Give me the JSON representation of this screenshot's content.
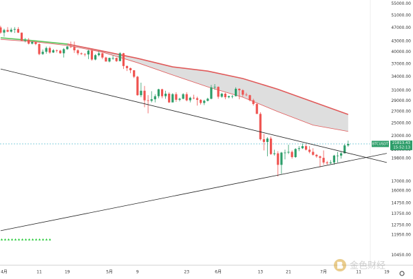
{
  "chart_data": {
    "type": "candlestick",
    "categories": [
      null,
      "4月",
      null,
      null,
      null,
      null,
      null,
      null,
      null,
      null,
      null,
      "11",
      null,
      null,
      null,
      null,
      null,
      null,
      null,
      "19",
      null,
      null,
      null,
      null,
      null,
      null,
      null,
      null,
      null,
      null,
      null,
      "5月",
      null,
      null,
      null,
      null,
      null,
      null,
      null,
      "9",
      null,
      null,
      null,
      null,
      null,
      null,
      null,
      null,
      null,
      null,
      null,
      null,
      null,
      "23",
      null,
      null,
      null,
      null,
      null,
      null,
      null,
      null,
      "6月",
      null,
      null,
      null,
      null,
      null,
      null,
      null,
      null,
      null,
      null,
      null,
      "13",
      null,
      null,
      null,
      null,
      null,
      null,
      null,
      "21",
      null,
      null,
      null,
      null,
      null,
      null,
      null,
      null,
      null,
      "7月",
      null,
      null,
      null,
      null,
      null,
      null,
      null,
      null,
      null,
      "11",
      null,
      null,
      null,
      null,
      null,
      null,
      null,
      "19",
      null,
      null,
      null,
      null,
      null
    ],
    "open": [
      47100,
      45500,
      46300,
      45800,
      46400,
      46600,
      45500,
      43200,
      43400,
      42300,
      42800,
      42200,
      39500,
      40100,
      41100,
      39900,
      40500,
      40400,
      39700,
      40800,
      41500,
      41400,
      40500,
      39700,
      39500,
      39400,
      40400,
      38100,
      39200,
      39700,
      38600,
      37600,
      38500,
      38500,
      37700,
      39700,
      36500,
      36000,
      35500,
      34000,
      30100,
      31000,
      29100,
      29000,
      29300,
      29900,
      31300,
      29900,
      30400,
      28700,
      30300,
      29200,
      29400,
      30300,
      29100,
      29600,
      29500,
      29200,
      28600,
      29000,
      29400,
      31700,
      31800,
      29800,
      30400,
      29700,
      29900,
      29900,
      31400,
      31100,
      30200,
      30100,
      29100,
      28400,
      26600,
      22500,
      22100,
      22600,
      20400,
      20500,
      19000,
      20600,
      20600,
      20700,
      20000,
      21100,
      21200,
      21500,
      21000,
      20700,
      20300,
      20100,
      19900,
      19300,
      19200,
      19300,
      20200,
      20200,
      20500,
      21600,
      null,
      null,
      null,
      null,
      null,
      null,
      null,
      null,
      null,
      null,
      null,
      null,
      null,
      null,
      null,
      null
    ],
    "high": [
      47600,
      46700,
      47200,
      47000,
      47200,
      47200,
      45500,
      43900,
      43900,
      43000,
      42800,
      42400,
      40700,
      41500,
      41500,
      40800,
      40700,
      40600,
      41100,
      41700,
      42900,
      42900,
      40800,
      39900,
      39700,
      40600,
      40800,
      39500,
      40300,
      39900,
      38800,
      38600,
      39100,
      38600,
      40000,
      39800,
      36600,
      36100,
      35500,
      34200,
      32700,
      32000,
      30100,
      30900,
      30300,
      31400,
      31400,
      31000,
      30700,
      30500,
      30700,
      29600,
      30500,
      30700,
      29800,
      30200,
      29800,
      29300,
      29200,
      29600,
      32200,
      32400,
      31900,
      30600,
      30600,
      30000,
      30100,
      31700,
      31500,
      31300,
      30600,
      30200,
      29400,
      28500,
      26900,
      23300,
      22800,
      22900,
      21000,
      20800,
      20700,
      21000,
      21700,
      20900,
      21200,
      21500,
      21900,
      21800,
      21500,
      21200,
      20400,
      20200,
      20900,
      19500,
      19600,
      20300,
      20700,
      20700,
      21800,
      22300,
      null,
      null,
      null,
      null,
      null,
      null,
      null,
      null,
      null,
      null,
      null,
      null,
      null,
      null,
      null,
      null
    ],
    "low": [
      45200,
      44300,
      45600,
      45500,
      45400,
      45400,
      43000,
      42700,
      42100,
      42100,
      41900,
      39200,
      39300,
      39600,
      39600,
      39800,
      39900,
      39600,
      38600,
      40600,
      41100,
      39800,
      39200,
      39300,
      38900,
      38200,
      37800,
      37900,
      38900,
      38200,
      37600,
      37400,
      38000,
      37500,
      37700,
      35800,
      35300,
      34800,
      33700,
      30000,
      29700,
      27800,
      26700,
      28700,
      28700,
      29500,
      29500,
      29400,
      28600,
      28700,
      28800,
      28900,
      29300,
      28900,
      28700,
      29300,
      28100,
      28300,
      28200,
      28900,
      29300,
      31200,
      29400,
      29600,
      29300,
      29500,
      29500,
      29900,
      29300,
      29800,
      29900,
      28900,
      28100,
      26600,
      22300,
      20900,
      20100,
      20300,
      20200,
      17600,
      17900,
      19700,
      20400,
      19800,
      19900,
      20800,
      21100,
      20900,
      20500,
      20200,
      19900,
      18700,
      19000,
      19000,
      19100,
      19000,
      19300,
      19800,
      20500,
      21400,
      null,
      null,
      null,
      null,
      null,
      null,
      null,
      null,
      null,
      null,
      null,
      null,
      null,
      null,
      null,
      null
    ],
    "close": [
      45500,
      46300,
      45800,
      46400,
      46600,
      45500,
      43200,
      43400,
      42300,
      42800,
      42200,
      39500,
      40100,
      41100,
      39900,
      40500,
      40400,
      39700,
      40800,
      41500,
      41400,
      40500,
      39700,
      39500,
      39400,
      40400,
      38100,
      39200,
      39700,
      38600,
      37600,
      38500,
      38500,
      37700,
      39700,
      36500,
      36000,
      35500,
      34000,
      30100,
      31000,
      29100,
      29000,
      29300,
      29900,
      31300,
      29900,
      30400,
      28700,
      30300,
      29200,
      29400,
      30300,
      29100,
      29600,
      29500,
      29200,
      28600,
      29000,
      29400,
      31700,
      31800,
      29800,
      30400,
      29700,
      29900,
      29900,
      31400,
      31100,
      30200,
      30100,
      29100,
      28400,
      26600,
      22500,
      22100,
      22600,
      20400,
      20500,
      19000,
      20600,
      20600,
      20700,
      20000,
      21100,
      21200,
      21500,
      21000,
      20700,
      20300,
      20100,
      19900,
      19300,
      19200,
      19300,
      20200,
      20200,
      20500,
      21600,
      21813.43,
      null,
      null,
      null,
      null,
      null,
      null,
      null,
      null,
      null,
      null,
      null,
      null,
      null,
      null,
      null,
      null
    ],
    "up_color": "#2e9e6a",
    "down_color": "#ef5350",
    "log_scale": true,
    "ylim": [
      9790,
      56450
    ],
    "yticks": [
      {
        "value": 55000,
        "label": "55000.00"
      },
      {
        "value": 51000,
        "label": "51000.00"
      },
      {
        "value": 47000,
        "label": "47000.00"
      },
      {
        "value": 43000,
        "label": "43000.00"
      },
      {
        "value": 40000,
        "label": "40000.00"
      },
      {
        "value": 37000,
        "label": "37000.00"
      },
      {
        "value": 34000,
        "label": "34000.00"
      },
      {
        "value": 31000,
        "label": "31000.00"
      },
      {
        "value": 29000,
        "label": "29000.00"
      },
      {
        "value": 27000,
        "label": "27000.00"
      },
      {
        "value": 25000,
        "label": "25000.00"
      },
      {
        "value": 23000,
        "label": "23000.00"
      },
      {
        "value": 21000,
        "label": "21000.00"
      },
      {
        "value": 19800,
        "label": "19800.00"
      },
      {
        "value": 17000,
        "label": "17000.00"
      },
      {
        "value": 16000,
        "label": "16000.00"
      },
      {
        "value": 14750,
        "label": "14750.00"
      },
      {
        "value": 13750,
        "label": "13750.00"
      },
      {
        "value": 12750,
        "label": "12750.00"
      },
      {
        "value": 11950,
        "label": "11950.00"
      },
      {
        "value": 10450,
        "label": "10450.00"
      }
    ],
    "ribbon": {
      "x": [
        0,
        10,
        19,
        29,
        39,
        49,
        59,
        69,
        79,
        89,
        99
      ],
      "upper": [
        44000,
        43100,
        42200,
        40300,
        38400,
        36300,
        35300,
        33600,
        31300,
        28800,
        26500
      ],
      "lower": [
        43500,
        42800,
        41800,
        40000,
        37300,
        34400,
        31800,
        29700,
        27000,
        24700,
        23700
      ],
      "color": "#e05a5a",
      "fill": "#dedede",
      "early_color": "#5cc85c",
      "early_until": 19
    },
    "trendlines": [
      {
        "x": [
          0,
          110
        ],
        "values": [
          35800,
          19300
        ]
      },
      {
        "x": [
          0,
          110
        ],
        "values": [
          12300,
          20500
        ]
      }
    ],
    "trendline_color": "#222222",
    "zone": {
      "x": [
        57,
        105
      ],
      "range": [
        22850,
        23650
      ],
      "color": "#dcd6f7"
    },
    "symbol": "BTCUSDT",
    "last_price": 21813.43,
    "countdown": "15:52:13",
    "price_line_color": "#3cb4c8",
    "watermark": "金色财经"
  }
}
